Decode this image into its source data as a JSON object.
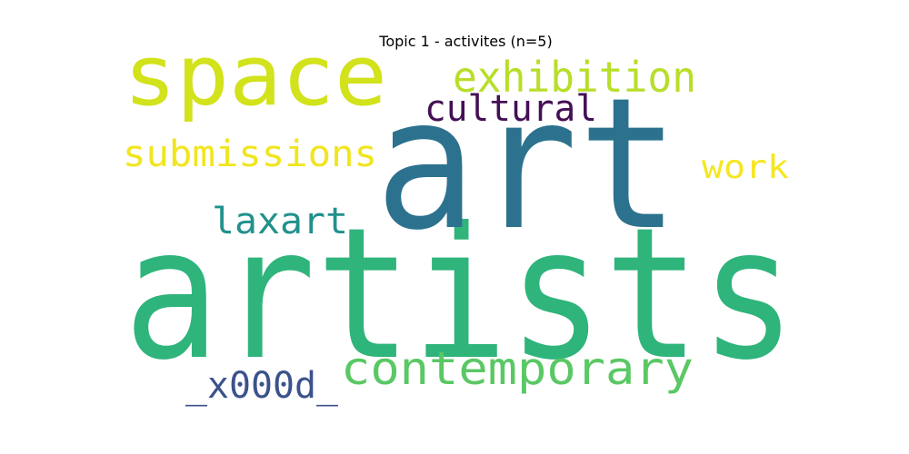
{
  "title": "Topic 1 - activites (n=5)",
  "words": [
    {
      "text": "artists",
      "color": "#2fb47c"
    },
    {
      "text": "art",
      "color": "#2c728e"
    },
    {
      "text": "space",
      "color": "#d2e21b"
    },
    {
      "text": "exhibition",
      "color": "#b8de29"
    },
    {
      "text": "cultural",
      "color": "#440f54"
    },
    {
      "text": "submissions",
      "color": "#f1e51d"
    },
    {
      "text": "work",
      "color": "#f6e620"
    },
    {
      "text": "laxart",
      "color": "#21918c"
    },
    {
      "text": "contemporary",
      "color": "#5ac864"
    },
    {
      "text": "_x000d_",
      "color": "#3b528b"
    }
  ]
}
